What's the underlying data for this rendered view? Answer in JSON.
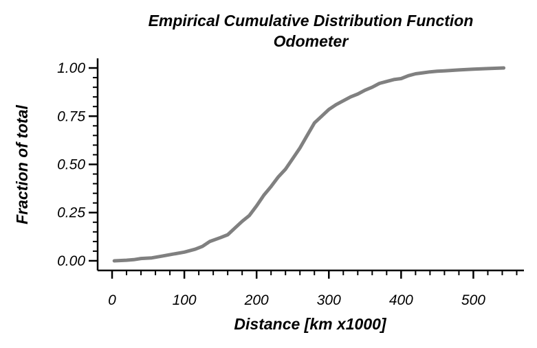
{
  "chart_data": {
    "type": "line",
    "title": "Empirical Cumulative Distribution Function",
    "subtitle": "Odometer",
    "xlabel": "Distance [km x1000]",
    "ylabel": "Fraction of total",
    "xlim": [
      -20,
      570
    ],
    "ylim": [
      -0.05,
      1.05
    ],
    "xticks": [
      0,
      100,
      200,
      300,
      400,
      500
    ],
    "xtick_labels": [
      "0",
      "100",
      "200",
      "300",
      "400",
      "500"
    ],
    "yticks": [
      0,
      0.25,
      0.5,
      0.75,
      1.0
    ],
    "ytick_labels": [
      "0.00",
      "0.25",
      "0.50",
      "0.75",
      "1.00"
    ],
    "x_minor_step": 20,
    "y_minor_step": 0.05,
    "grid": false,
    "line_color": "#808080",
    "series": [
      {
        "x": [
          3,
          20,
          30,
          40,
          55,
          70,
          85,
          100,
          115,
          125,
          135,
          150,
          160,
          170,
          180,
          190,
          200,
          210,
          220,
          230,
          240,
          250,
          260,
          270,
          280,
          290,
          300,
          310,
          320,
          330,
          340,
          350,
          360,
          370,
          380,
          390,
          400,
          410,
          420,
          430,
          440,
          450,
          460,
          480,
          500,
          520,
          542
        ],
        "y": [
          0.0,
          0.003,
          0.006,
          0.012,
          0.015,
          0.025,
          0.035,
          0.045,
          0.06,
          0.075,
          0.1,
          0.12,
          0.135,
          0.17,
          0.205,
          0.235,
          0.285,
          0.34,
          0.385,
          0.435,
          0.475,
          0.53,
          0.585,
          0.65,
          0.715,
          0.75,
          0.785,
          0.81,
          0.83,
          0.85,
          0.865,
          0.885,
          0.9,
          0.92,
          0.93,
          0.94,
          0.945,
          0.96,
          0.97,
          0.975,
          0.98,
          0.983,
          0.985,
          0.99,
          0.994,
          0.997,
          1.0
        ]
      }
    ]
  }
}
